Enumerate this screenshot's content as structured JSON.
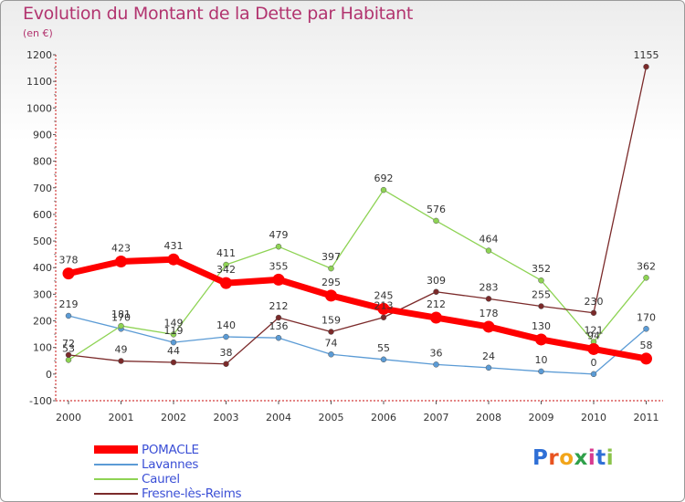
{
  "title": "Evolution du Montant de la Dette par Habitant",
  "unit": "(en €)",
  "logo": {
    "text": "Proxiti",
    "letters": [
      "P",
      "r",
      "o",
      "x",
      "i",
      "t",
      "i"
    ],
    "colors": [
      "#2f6fd6",
      "#e8531f",
      "#f2a51a",
      "#2fa04a",
      "#d83a8f",
      "#2f6fd6",
      "#8bc34a"
    ]
  },
  "chart_data": {
    "type": "line",
    "categories": [
      "2000",
      "2001",
      "2002",
      "2003",
      "2004",
      "2005",
      "2006",
      "2007",
      "2008",
      "2009",
      "2010",
      "2011"
    ],
    "ylim": [
      -100,
      1200
    ],
    "yticks": [
      "-100",
      "0",
      "100",
      "200",
      "300",
      "400",
      "500",
      "600",
      "700",
      "800",
      "900",
      "1000",
      "1100",
      "1200"
    ],
    "grid": false,
    "legend_position": "bottom-left",
    "series": [
      {
        "name": "POMACLE",
        "color": "#ff0000",
        "emphasis": true,
        "values": [
          378,
          423,
          431,
          342,
          355,
          295,
          245,
          212,
          178,
          130,
          94,
          58
        ],
        "labels": [
          "378",
          "423",
          "431",
          "342",
          "355",
          "295",
          "245",
          "212",
          "178",
          "130",
          "94",
          "58"
        ]
      },
      {
        "name": "Lavannes",
        "color": "#5b9bd5",
        "values": [
          219,
          170,
          119,
          140,
          136,
          74,
          55,
          36,
          24,
          10,
          0,
          170
        ],
        "labels": [
          "219",
          "170",
          "119",
          "140",
          "136",
          "74",
          "55",
          "36",
          "24",
          "10",
          "0",
          "170"
        ]
      },
      {
        "name": "Caurel",
        "color": "#8ed354",
        "values": [
          53,
          181,
          149,
          411,
          479,
          397,
          692,
          576,
          464,
          352,
          121,
          362
        ],
        "labels": [
          "53",
          "181",
          "149",
          "411",
          "479",
          "397",
          "692",
          "576",
          "464",
          "352",
          "121",
          "362"
        ]
      },
      {
        "name": "Fresne-lès-Reims",
        "color": "#7b2a2a",
        "values": [
          72,
          49,
          44,
          38,
          212,
          159,
          213,
          309,
          283,
          255,
          230,
          1155
        ],
        "labels": [
          "72",
          "49",
          "44",
          "38",
          "212",
          "159",
          "213",
          "309",
          "283",
          "255",
          "230",
          "1155"
        ]
      }
    ]
  }
}
